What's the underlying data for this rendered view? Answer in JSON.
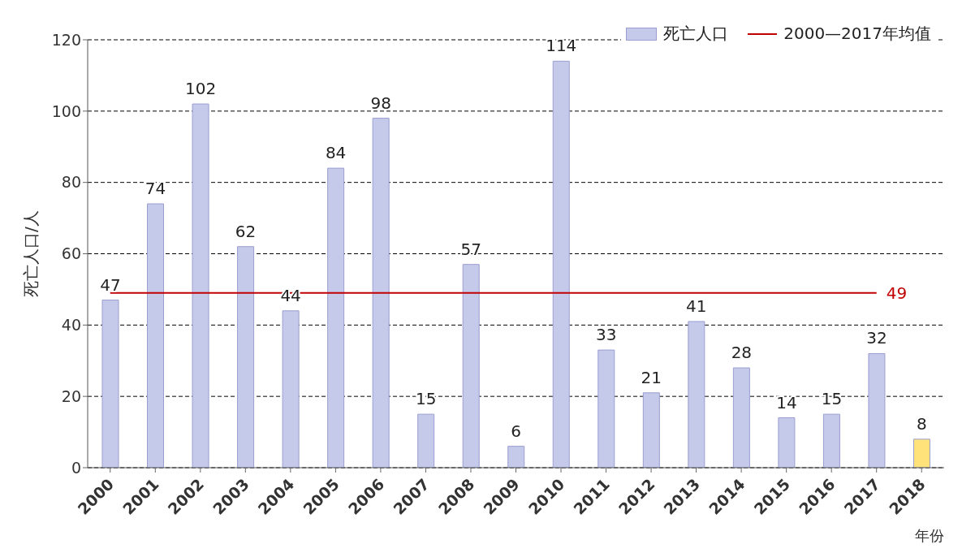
{
  "chart_data": {
    "type": "bar",
    "xlabel": "年份",
    "ylabel": "死亡人口/人",
    "categories": [
      "2000",
      "2001",
      "2002",
      "2003",
      "2004",
      "2005",
      "2006",
      "2007",
      "2008",
      "2009",
      "2010",
      "2011",
      "2012",
      "2013",
      "2014",
      "2015",
      "2016",
      "2017",
      "2018"
    ],
    "series": [
      {
        "name": "死亡人口",
        "color": "#c5c9ea",
        "colors": [
          "#c5c9ea",
          "#c5c9ea",
          "#c5c9ea",
          "#c5c9ea",
          "#c5c9ea",
          "#c5c9ea",
          "#c5c9ea",
          "#c5c9ea",
          "#c5c9ea",
          "#c5c9ea",
          "#c5c9ea",
          "#c5c9ea",
          "#c5c9ea",
          "#c5c9ea",
          "#c5c9ea",
          "#c5c9ea",
          "#c5c9ea",
          "#c5c9ea",
          "#ffe27a"
        ],
        "values": [
          47,
          74,
          102,
          62,
          44,
          84,
          98,
          15,
          57,
          6,
          114,
          33,
          21,
          41,
          28,
          14,
          15,
          32,
          8
        ]
      },
      {
        "name": "2000—2017年均值",
        "type": "line",
        "color": "#c00000",
        "values": [
          49,
          49,
          49,
          49,
          49,
          49,
          49,
          49,
          49,
          49,
          49,
          49,
          49,
          49,
          49,
          49,
          49,
          49,
          null
        ],
        "value_labels": [
          null,
          null,
          null,
          null,
          null,
          null,
          null,
          null,
          null,
          null,
          null,
          null,
          null,
          null,
          null,
          null,
          null,
          "49",
          null
        ]
      }
    ],
    "data_labels": true,
    "ylim": [
      0,
      120
    ],
    "yticks": [
      0,
      20,
      40,
      60,
      80,
      100,
      120
    ],
    "grid": "y",
    "legend": "top right"
  }
}
